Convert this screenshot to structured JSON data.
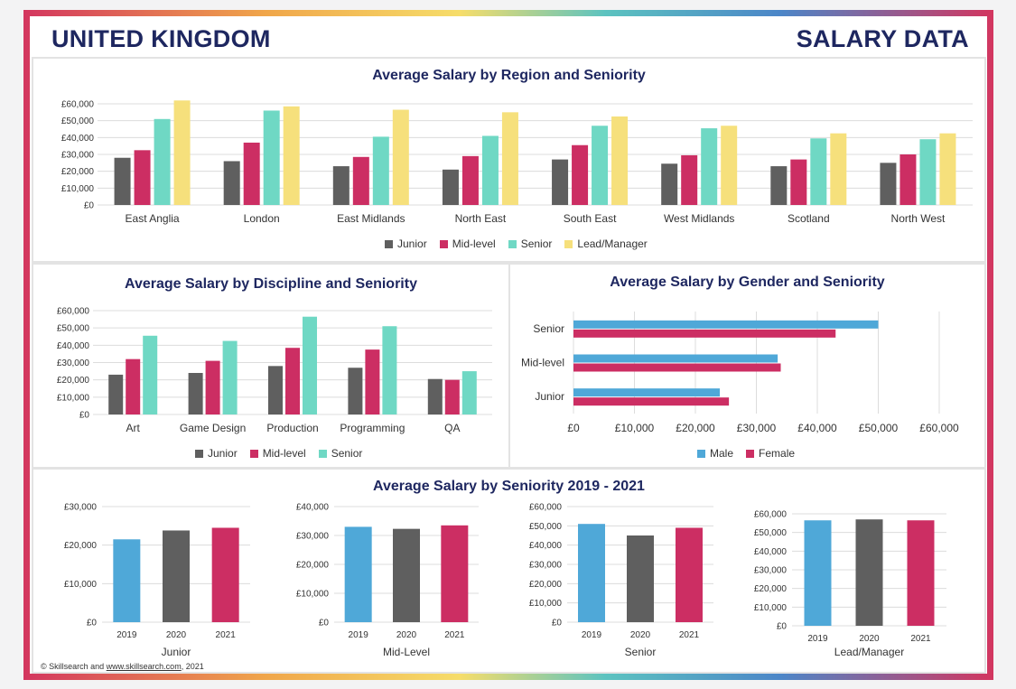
{
  "header": {
    "left": "UNITED KINGDOM",
    "right": "SALARY DATA"
  },
  "colors": {
    "junior": "#5f5f5f",
    "mid": "#cc2e63",
    "senior": "#6fd8c4",
    "lead": "#f6e07c",
    "male": "#4fa8d8",
    "female": "#cc2e63",
    "y2019": "#4fa8d8",
    "y2020": "#5f5f5f",
    "y2021": "#cc2e63"
  },
  "footer": {
    "prefix": "© Skillsearch and ",
    "link": "www.skillsearch.com",
    "suffix": ", 2021"
  },
  "chart_data": [
    {
      "type": "bar",
      "title": "Average Salary by Region and Seniority",
      "categories": [
        "East Anglia",
        "London",
        "East Midlands",
        "North East",
        "South East",
        "West Midlands",
        "Scotland",
        "North West"
      ],
      "series": [
        {
          "name": "Junior",
          "values": [
            28000,
            26000,
            23000,
            21000,
            27000,
            24500,
            23000,
            25000
          ]
        },
        {
          "name": "Mid-level",
          "values": [
            32500,
            37000,
            28500,
            29000,
            35500,
            29500,
            27000,
            30000
          ]
        },
        {
          "name": "Senior",
          "values": [
            51000,
            56000,
            40500,
            41000,
            47000,
            45500,
            39500,
            39000
          ]
        },
        {
          "name": "Lead/Manager",
          "values": [
            62000,
            58500,
            56500,
            55000,
            52500,
            47000,
            42500,
            42500
          ]
        }
      ],
      "ylim": [
        0,
        60000
      ],
      "yticks": [
        "£0",
        "£10,000",
        "£20,000",
        "£30,000",
        "£40,000",
        "£50,000",
        "£60,000"
      ],
      "legend": [
        "Junior",
        "Mid-level",
        "Senior",
        "Lead/Manager"
      ],
      "grid": true,
      "legend_position": "bottom"
    },
    {
      "type": "bar",
      "title": "Average Salary by Discipline and Seniority",
      "categories": [
        "Art",
        "Game Design",
        "Production",
        "Programming",
        "QA"
      ],
      "series": [
        {
          "name": "Junior",
          "values": [
            23000,
            24000,
            28000,
            27000,
            20500
          ]
        },
        {
          "name": "Mid-level",
          "values": [
            32000,
            31000,
            38500,
            37500,
            20000
          ]
        },
        {
          "name": "Senior",
          "values": [
            45500,
            42500,
            56500,
            51000,
            25000
          ]
        }
      ],
      "ylim": [
        0,
        60000
      ],
      "yticks": [
        "£0",
        "£10,000",
        "£20,000",
        "£30,000",
        "£40,000",
        "£50,000",
        "£60,000"
      ],
      "legend": [
        "Junior",
        "Mid-level",
        "Senior"
      ],
      "grid": true,
      "legend_position": "bottom"
    },
    {
      "type": "bar",
      "orientation": "horizontal",
      "title": "Average Salary by Gender and Seniority",
      "categories": [
        "Senior",
        "Mid-level",
        "Junior"
      ],
      "series": [
        {
          "name": "Male",
          "values": [
            50000,
            33500,
            24000
          ]
        },
        {
          "name": "Female",
          "values": [
            43000,
            34000,
            25500
          ]
        }
      ],
      "xlim": [
        0,
        60000
      ],
      "xticks": [
        "£0",
        "£10,000",
        "£20,000",
        "£30,000",
        "£40,000",
        "£50,000",
        "£60,000"
      ],
      "legend": [
        "Male",
        "Female"
      ],
      "grid": true,
      "legend_position": "bottom"
    },
    {
      "type": "bar",
      "title": "Average Salary by Seniority 2019 - 2021",
      "subcharts": [
        {
          "label": "Junior",
          "categories": [
            "2019",
            "2020",
            "2021"
          ],
          "values": [
            21500,
            23800,
            24500
          ],
          "ylim": [
            0,
            30000
          ],
          "yticks": [
            "£0",
            "£10,000",
            "£20,000",
            "£30,000"
          ]
        },
        {
          "label": "Mid-Level",
          "categories": [
            "2019",
            "2020",
            "2021"
          ],
          "values": [
            33000,
            32300,
            33500
          ],
          "ylim": [
            0,
            40000
          ],
          "yticks": [
            "£0",
            "£10,000",
            "£20,000",
            "£30,000",
            "£40,000"
          ]
        },
        {
          "label": "Senior",
          "categories": [
            "2019",
            "2020",
            "2021"
          ],
          "values": [
            51000,
            45000,
            49000
          ],
          "ylim": [
            0,
            60000
          ],
          "yticks": [
            "£0",
            "£10,000",
            "£20,000",
            "£30,000",
            "£40,000",
            "£50,000",
            "£60,000"
          ]
        },
        {
          "label": "Lead/Manager",
          "categories": [
            "2019",
            "2020",
            "2021"
          ],
          "values": [
            56500,
            57000,
            56500
          ],
          "ylim": [
            0,
            60000
          ],
          "yticks": [
            "£0",
            "£10,000",
            "£20,000",
            "£30,000",
            "£40,000",
            "£50,000",
            "£60,000"
          ]
        }
      ]
    }
  ]
}
